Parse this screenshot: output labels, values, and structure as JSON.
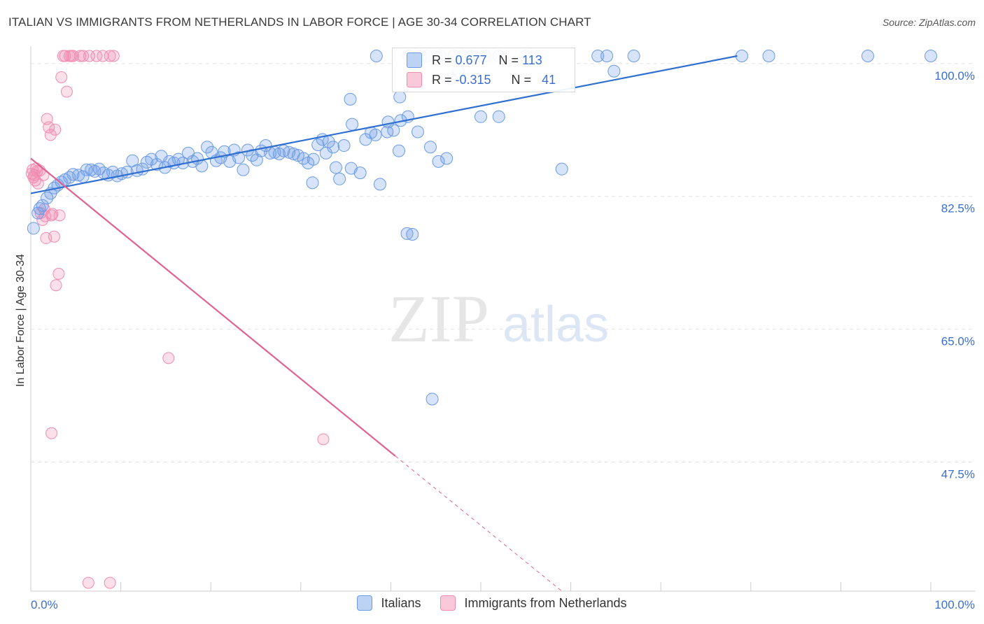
{
  "title": "ITALIAN VS IMMIGRANTS FROM NETHERLANDS IN LABOR FORCE | AGE 30-34 CORRELATION CHART",
  "source": "Source: ZipAtlas.com",
  "watermark": {
    "zip": "ZIP",
    "atlas": "atlas"
  },
  "legend": {
    "rows": [
      {
        "r_label": "R =",
        "r_value": "0.677",
        "n_label": "N =",
        "n_value": "113"
      },
      {
        "r_label": "R =",
        "r_value": "-0.315",
        "n_label": "N =",
        "n_value": "41"
      }
    ]
  },
  "bottom_legend": {
    "series1": "Italians",
    "series2": "Immigrants from Netherlands"
  },
  "chart_data": {
    "type": "scatter",
    "xlabel": "",
    "ylabel": "In Labor Force | Age 30-34",
    "xlim": [
      0,
      100
    ],
    "ylim": [
      30.5,
      101
    ],
    "x_tick_labels": [
      "0.0%",
      "100.0%"
    ],
    "y_ticks": [
      100,
      82.5,
      65,
      47.5
    ],
    "y_tick_labels": [
      "100.0%",
      "82.5%",
      "65.0%",
      "47.5%"
    ],
    "grid": true,
    "colors": {
      "series1": "#6b9be6",
      "series1_line": "#2f6fd0",
      "series2": "#f08cb0",
      "series2_line": "#e06293",
      "axis_text": "#3a6fd0"
    },
    "series": [
      {
        "name": "Italians",
        "trend": {
          "x": [
            0,
            78.5
          ],
          "y": [
            82.9,
            101
          ]
        },
        "points": [
          [
            0.3,
            78.3
          ],
          [
            0.8,
            80.3
          ],
          [
            1.0,
            80.9
          ],
          [
            1.3,
            81.3
          ],
          [
            1.8,
            82.3
          ],
          [
            2.2,
            82.9
          ],
          [
            2.6,
            83.6
          ],
          [
            3.0,
            84.0
          ],
          [
            3.4,
            84.4
          ],
          [
            3.8,
            84.7
          ],
          [
            4.3,
            85.0
          ],
          [
            4.7,
            85.4
          ],
          [
            5.3,
            85.3
          ],
          [
            5.8,
            85.1
          ],
          [
            6.2,
            86.0
          ],
          [
            6.7,
            86.0
          ],
          [
            7.1,
            85.8
          ],
          [
            7.6,
            86.1
          ],
          [
            8.1,
            85.6
          ],
          [
            8.6,
            85.3
          ],
          [
            9.1,
            85.7
          ],
          [
            9.6,
            85.2
          ],
          [
            10.1,
            85.5
          ],
          [
            10.7,
            85.7
          ],
          [
            11.3,
            87.2
          ],
          [
            11.8,
            85.9
          ],
          [
            12.4,
            86.1
          ],
          [
            12.9,
            87.0
          ],
          [
            13.4,
            87.4
          ],
          [
            14.0,
            86.7
          ],
          [
            14.5,
            87.8
          ],
          [
            14.9,
            86.3
          ],
          [
            15.4,
            87.1
          ],
          [
            15.9,
            86.9
          ],
          [
            16.4,
            87.4
          ],
          [
            16.9,
            86.9
          ],
          [
            17.5,
            88.2
          ],
          [
            18.0,
            87.1
          ],
          [
            18.5,
            87.5
          ],
          [
            19.0,
            86.5
          ],
          [
            19.6,
            89.0
          ],
          [
            20.1,
            88.3
          ],
          [
            20.6,
            87.2
          ],
          [
            21.1,
            87.6
          ],
          [
            21.5,
            88.4
          ],
          [
            22.1,
            87.1
          ],
          [
            22.6,
            88.6
          ],
          [
            23.1,
            87.6
          ],
          [
            23.6,
            86.0
          ],
          [
            24.1,
            88.6
          ],
          [
            24.6,
            87.9
          ],
          [
            25.1,
            87.3
          ],
          [
            25.6,
            88.5
          ],
          [
            26.1,
            89.2
          ],
          [
            26.6,
            88.2
          ],
          [
            27.1,
            88.3
          ],
          [
            27.6,
            88.1
          ],
          [
            28.1,
            88.5
          ],
          [
            28.7,
            88.3
          ],
          [
            29.2,
            88.1
          ],
          [
            29.7,
            87.9
          ],
          [
            30.3,
            87.5
          ],
          [
            30.8,
            86.9
          ],
          [
            31.4,
            87.4
          ],
          [
            31.9,
            89.3
          ],
          [
            33.1,
            89.7
          ],
          [
            32.8,
            88.2
          ],
          [
            31.3,
            84.3
          ],
          [
            33.6,
            89.0
          ],
          [
            32.4,
            90.0
          ],
          [
            33.9,
            86.3
          ],
          [
            34.3,
            84.8
          ],
          [
            34.8,
            89.2
          ],
          [
            35.6,
            86.2
          ],
          [
            35.7,
            92.0
          ],
          [
            36.6,
            85.6
          ],
          [
            37.2,
            90.0
          ],
          [
            37.8,
            90.9
          ],
          [
            38.3,
            90.6
          ],
          [
            35.5,
            95.3
          ],
          [
            38.8,
            84.1
          ],
          [
            39.6,
            91.0
          ],
          [
            40.3,
            91.2
          ],
          [
            39.7,
            92.3
          ],
          [
            41.1,
            92.5
          ],
          [
            41.9,
            93.0
          ],
          [
            38.4,
            101
          ],
          [
            41.0,
            95.6
          ],
          [
            42.0,
            101
          ],
          [
            44.0,
            101
          ],
          [
            45.5,
            101
          ],
          [
            47.0,
            101
          ],
          [
            48.0,
            101
          ],
          [
            49.0,
            101
          ],
          [
            50.5,
            101
          ],
          [
            52.0,
            101
          ],
          [
            55.0,
            101
          ],
          [
            63.0,
            101
          ],
          [
            64.0,
            101
          ],
          [
            67.0,
            101
          ],
          [
            79.0,
            101
          ],
          [
            82.0,
            101
          ],
          [
            93.0,
            101
          ],
          [
            100.0,
            101
          ],
          [
            47.5,
            99
          ],
          [
            46.7,
            98
          ],
          [
            50.0,
            93
          ],
          [
            44.4,
            89
          ],
          [
            46.2,
            87.5
          ],
          [
            40.9,
            88.5
          ],
          [
            43.0,
            91
          ],
          [
            45.3,
            87.1
          ],
          [
            41.8,
            77.6
          ],
          [
            42.4,
            77.5
          ],
          [
            43.3,
            101
          ],
          [
            44.6,
            55.8
          ],
          [
            52.0,
            93
          ],
          [
            59.0,
            86.1
          ],
          [
            64.8,
            99
          ]
        ]
      },
      {
        "name": "Immigrants from Netherlands",
        "trend": {
          "x": [
            0,
            40.5
          ],
          "y": [
            87.5,
            48.3
          ]
        },
        "trend_dashed": {
          "x": [
            40.5,
            59
          ],
          "y": [
            48.3,
            30.5
          ]
        },
        "points": [
          [
            0.1,
            85.5
          ],
          [
            0.2,
            86.0
          ],
          [
            0.3,
            85.0
          ],
          [
            0.4,
            85.3
          ],
          [
            0.5,
            84.6
          ],
          [
            0.6,
            86.2
          ],
          [
            0.7,
            85.8
          ],
          [
            0.8,
            84.2
          ],
          [
            1.0,
            85.9
          ],
          [
            1.1,
            80.3
          ],
          [
            1.3,
            79.4
          ],
          [
            1.4,
            85.3
          ],
          [
            1.5,
            80.8
          ],
          [
            1.6,
            79.9
          ],
          [
            1.7,
            77.0
          ],
          [
            1.8,
            92.7
          ],
          [
            2.0,
            91.6
          ],
          [
            2.2,
            90.6
          ],
          [
            2.3,
            80.0
          ],
          [
            2.4,
            80.2
          ],
          [
            2.6,
            77.2
          ],
          [
            2.7,
            91.3
          ],
          [
            2.8,
            70.8
          ],
          [
            3.1,
            72.3
          ],
          [
            3.2,
            80.0
          ],
          [
            3.4,
            98.2
          ],
          [
            3.6,
            101
          ],
          [
            3.8,
            101
          ],
          [
            4.0,
            96.3
          ],
          [
            4.3,
            101
          ],
          [
            4.5,
            101
          ],
          [
            4.7,
            101
          ],
          [
            5.5,
            101
          ],
          [
            5.8,
            101
          ],
          [
            6.5,
            101
          ],
          [
            7.3,
            101
          ],
          [
            8.0,
            101
          ],
          [
            8.8,
            101
          ],
          [
            9.2,
            101
          ],
          [
            2.3,
            51.3
          ],
          [
            15.3,
            61.2
          ],
          [
            32.5,
            50.5
          ],
          [
            6.4,
            31.6
          ],
          [
            8.8,
            31.6
          ]
        ]
      }
    ]
  }
}
